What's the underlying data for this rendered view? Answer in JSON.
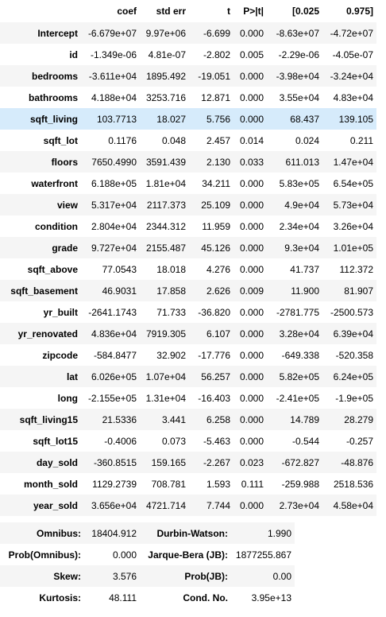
{
  "coef_table": {
    "headers": [
      "",
      "coef",
      "std err",
      "t",
      "P>|t|",
      "[0.025",
      "0.975]"
    ],
    "highlight_row": "sqft_living",
    "rows": [
      {
        "name": "Intercept",
        "cells": [
          "-6.679e+07",
          "9.97e+06",
          "-6.699",
          "0.000",
          "-8.63e+07",
          "-4.72e+07"
        ]
      },
      {
        "name": "id",
        "cells": [
          "-1.349e-06",
          "4.81e-07",
          "-2.802",
          "0.005",
          "-2.29e-06",
          "-4.05e-07"
        ]
      },
      {
        "name": "bedrooms",
        "cells": [
          "-3.611e+04",
          "1895.492",
          "-19.051",
          "0.000",
          "-3.98e+04",
          "-3.24e+04"
        ]
      },
      {
        "name": "bathrooms",
        "cells": [
          "4.188e+04",
          "3253.716",
          "12.871",
          "0.000",
          "3.55e+04",
          "4.83e+04"
        ]
      },
      {
        "name": "sqft_living",
        "cells": [
          "103.7713",
          "18.027",
          "5.756",
          "0.000",
          "68.437",
          "139.105"
        ]
      },
      {
        "name": "sqft_lot",
        "cells": [
          "0.1176",
          "0.048",
          "2.457",
          "0.014",
          "0.024",
          "0.211"
        ]
      },
      {
        "name": "floors",
        "cells": [
          "7650.4990",
          "3591.439",
          "2.130",
          "0.033",
          "611.013",
          "1.47e+04"
        ]
      },
      {
        "name": "waterfront",
        "cells": [
          "6.188e+05",
          "1.81e+04",
          "34.211",
          "0.000",
          "5.83e+05",
          "6.54e+05"
        ]
      },
      {
        "name": "view",
        "cells": [
          "5.317e+04",
          "2117.373",
          "25.109",
          "0.000",
          "4.9e+04",
          "5.73e+04"
        ]
      },
      {
        "name": "condition",
        "cells": [
          "2.804e+04",
          "2344.312",
          "11.959",
          "0.000",
          "2.34e+04",
          "3.26e+04"
        ]
      },
      {
        "name": "grade",
        "cells": [
          "9.727e+04",
          "2155.487",
          "45.126",
          "0.000",
          "9.3e+04",
          "1.01e+05"
        ]
      },
      {
        "name": "sqft_above",
        "cells": [
          "77.0543",
          "18.018",
          "4.276",
          "0.000",
          "41.737",
          "112.372"
        ]
      },
      {
        "name": "sqft_basement",
        "cells": [
          "46.9031",
          "17.858",
          "2.626",
          "0.009",
          "11.900",
          "81.907"
        ]
      },
      {
        "name": "yr_built",
        "cells": [
          "-2641.1743",
          "71.733",
          "-36.820",
          "0.000",
          "-2781.775",
          "-2500.573"
        ]
      },
      {
        "name": "yr_renovated",
        "cells": [
          "4.836e+04",
          "7919.305",
          "6.107",
          "0.000",
          "3.28e+04",
          "6.39e+04"
        ]
      },
      {
        "name": "zipcode",
        "cells": [
          "-584.8477",
          "32.902",
          "-17.776",
          "0.000",
          "-649.338",
          "-520.358"
        ]
      },
      {
        "name": "lat",
        "cells": [
          "6.026e+05",
          "1.07e+04",
          "56.257",
          "0.000",
          "5.82e+05",
          "6.24e+05"
        ]
      },
      {
        "name": "long",
        "cells": [
          "-2.155e+05",
          "1.31e+04",
          "-16.403",
          "0.000",
          "-2.41e+05",
          "-1.9e+05"
        ]
      },
      {
        "name": "sqft_living15",
        "cells": [
          "21.5336",
          "3.441",
          "6.258",
          "0.000",
          "14.789",
          "28.279"
        ]
      },
      {
        "name": "sqft_lot15",
        "cells": [
          "-0.4006",
          "0.073",
          "-5.463",
          "0.000",
          "-0.544",
          "-0.257"
        ]
      },
      {
        "name": "day_sold",
        "cells": [
          "-360.8515",
          "159.165",
          "-2.267",
          "0.023",
          "-672.827",
          "-48.876"
        ]
      },
      {
        "name": "month_sold",
        "cells": [
          "1129.2739",
          "708.781",
          "1.593",
          "0.111",
          "-259.988",
          "2518.536"
        ]
      },
      {
        "name": "year_sold",
        "cells": [
          "3.656e+04",
          "4721.714",
          "7.744",
          "0.000",
          "2.73e+04",
          "4.58e+04"
        ]
      }
    ]
  },
  "diag_table": {
    "rows": [
      [
        "Omnibus:",
        "18404.912",
        "Durbin-Watson:",
        "1.990"
      ],
      [
        "Prob(Omnibus):",
        "0.000",
        "Jarque-Bera (JB):",
        "1877255.867"
      ],
      [
        "Skew:",
        "3.576",
        "Prob(JB):",
        "0.00"
      ],
      [
        "Kurtosis:",
        "48.111",
        "Cond. No.",
        "3.95e+13"
      ]
    ]
  },
  "colors": {
    "stripe": "#f5f5f5",
    "highlight": "#d6ebfb",
    "background": "#ffffff"
  }
}
